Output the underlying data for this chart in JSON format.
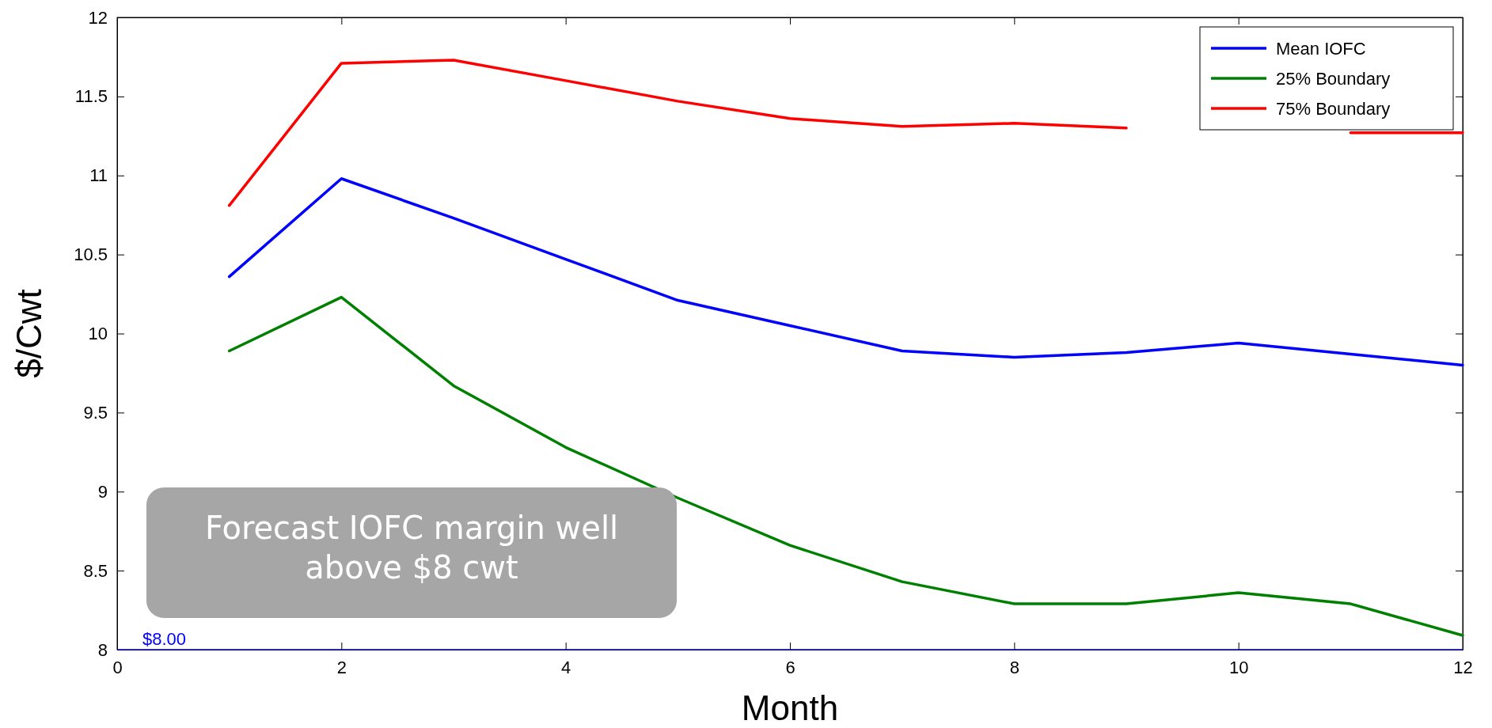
{
  "chart_data": {
    "type": "line",
    "xlabel": "Month",
    "ylabel": "$/Cwt",
    "x": [
      1,
      2,
      3,
      4,
      5,
      6,
      7,
      8,
      9,
      10,
      11,
      12
    ],
    "series": [
      {
        "name": "Mean IOFC",
        "color": "#0000ff",
        "values": [
          10.36,
          10.98,
          10.73,
          10.47,
          10.21,
          10.05,
          9.89,
          9.85,
          9.88,
          9.94,
          9.87,
          9.8
        ]
      },
      {
        "name": "25% Boundary",
        "color": "#008000",
        "values": [
          9.89,
          10.23,
          9.67,
          9.28,
          8.96,
          8.66,
          8.43,
          8.29,
          8.29,
          8.36,
          8.29,
          8.09
        ]
      },
      {
        "name": "75% Boundary",
        "color": "#ff0000",
        "values": [
          10.81,
          11.71,
          11.73,
          11.6,
          11.47,
          11.36,
          11.31,
          11.33,
          11.3,
          null,
          11.27,
          11.27
        ]
      }
    ],
    "xlim": [
      0,
      12
    ],
    "xticks": [
      0,
      2,
      4,
      6,
      8,
      10,
      12
    ],
    "ylim": [
      8,
      12
    ],
    "yticks": [
      8,
      8.5,
      9,
      9.5,
      10,
      10.5,
      11,
      11.5,
      12
    ],
    "ref_lines": [
      {
        "axis": "y",
        "value": 8,
        "label": "$8.00",
        "color": "#0000ff"
      }
    ],
    "annotations": [
      "Forecast IOFC margin well above $8 cwt"
    ],
    "legend": "top right",
    "grid": false,
    "marker": "none",
    "line_style": "solid"
  }
}
